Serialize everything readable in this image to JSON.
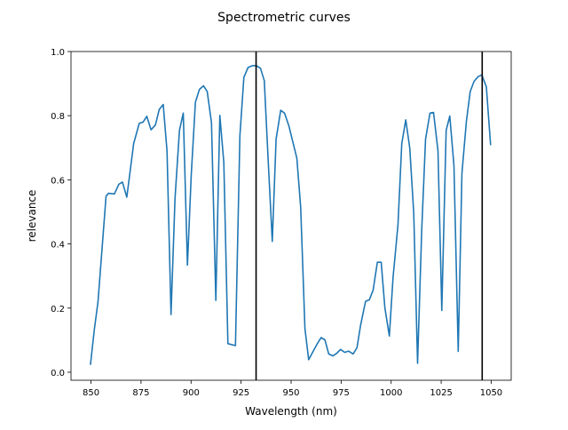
{
  "chart_data": {
    "type": "line",
    "title": "Spectrometric curves",
    "xlabel": "Wavelength (nm)",
    "ylabel": "relevance",
    "xlim": [
      840,
      1060
    ],
    "ylim": [
      -0.025,
      1.0
    ],
    "xticks": [
      850,
      875,
      900,
      925,
      950,
      975,
      1000,
      1025,
      1050
    ],
    "yticks": [
      0.0,
      0.2,
      0.4,
      0.6,
      0.8,
      1.0
    ],
    "xtick_labels": [
      "850",
      "875",
      "900",
      "925",
      "950",
      "975",
      "1000",
      "1025",
      "1050"
    ],
    "ytick_labels": [
      "0.0",
      "0.2",
      "0.4",
      "0.6",
      "0.8",
      "1.0"
    ],
    "grid": false,
    "line_color": "#1f77b4",
    "vline_color": "#000000",
    "vlines": [
      932.5,
      1045.5
    ],
    "series": [
      {
        "x": [
          849.7,
          851.6,
          853.5,
          857.5,
          858.7,
          861.7,
          863.9,
          865.7,
          867.9,
          871.3,
          874.1,
          876.0,
          877.9,
          880.0,
          882.2,
          884.1,
          886.1,
          888.0,
          890.0,
          892.0,
          894.2,
          896.1,
          898.2,
          900.1,
          902.2,
          904.2,
          906.2,
          908.1,
          910.2,
          912.4,
          914.4,
          916.4,
          918.4,
          922.2,
          924.4,
          926.4,
          928.5,
          930.7,
          932.6,
          934.7,
          936.6,
          938.6,
          940.6,
          942.5,
          944.8,
          946.7,
          948.9,
          952.9,
          954.8,
          956.9,
          958.8,
          961.0,
          963.0,
          965.0,
          966.9,
          968.8,
          970.9,
          972.8,
          974.7,
          976.8,
          978.7,
          981.0,
          982.9,
          984.7,
          987.2,
          989.1,
          991.0,
          993.1,
          995.0,
          996.9,
          999.1,
          1000.9,
          1003.4,
          1005.3,
          1007.3,
          1009.3,
          1011.3,
          1013.2,
          1015.3,
          1017.2,
          1019.4,
          1021.2,
          1023.4,
          1025.3,
          1027.5,
          1029.3,
          1031.4,
          1033.5,
          1035.4,
          1037.6,
          1039.5,
          1041.4,
          1043.5,
          1045.3,
          1047.6,
          1049.7
        ],
        "y": [
          0.023,
          0.131,
          0.219,
          0.549,
          0.558,
          0.556,
          0.586,
          0.593,
          0.546,
          0.713,
          0.776,
          0.78,
          0.798,
          0.756,
          0.771,
          0.819,
          0.835,
          0.69,
          0.18,
          0.542,
          0.754,
          0.808,
          0.334,
          0.616,
          0.842,
          0.882,
          0.893,
          0.875,
          0.778,
          0.224,
          0.801,
          0.654,
          0.089,
          0.083,
          0.737,
          0.92,
          0.95,
          0.956,
          0.956,
          0.948,
          0.909,
          0.654,
          0.408,
          0.727,
          0.817,
          0.808,
          0.768,
          0.667,
          0.514,
          0.136,
          0.039,
          0.065,
          0.088,
          0.108,
          0.101,
          0.057,
          0.051,
          0.059,
          0.071,
          0.062,
          0.066,
          0.057,
          0.076,
          0.145,
          0.221,
          0.226,
          0.256,
          0.343,
          0.343,
          0.2,
          0.113,
          0.293,
          0.459,
          0.713,
          0.787,
          0.699,
          0.496,
          0.028,
          0.445,
          0.727,
          0.808,
          0.81,
          0.69,
          0.193,
          0.754,
          0.799,
          0.644,
          0.065,
          0.621,
          0.782,
          0.875,
          0.907,
          0.922,
          0.927,
          0.89,
          0.708
        ]
      }
    ]
  }
}
